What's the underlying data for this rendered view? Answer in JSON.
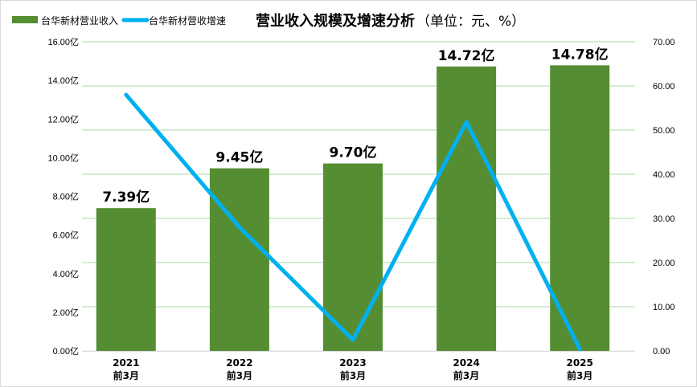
{
  "chart_data": {
    "type": "bar+line",
    "title": "营业收入规模及增速分析",
    "unit_note": "（单位：元、%）",
    "categories": [
      [
        "2021",
        "前3月"
      ],
      [
        "2022",
        "前3月"
      ],
      [
        "2023",
        "前3月"
      ],
      [
        "2024",
        "前3月"
      ],
      [
        "2025",
        "前3月"
      ]
    ],
    "series": [
      {
        "name": "台华新材营业收入",
        "type": "bar",
        "axis": "left",
        "color": "#558e32",
        "values": [
          7.39,
          9.45,
          9.7,
          14.72,
          14.78
        ],
        "labels": [
          "7.39亿",
          "9.45亿",
          "9.70亿",
          "14.72亿",
          "14.78亿"
        ]
      },
      {
        "name": "台华新材营收增速",
        "type": "line",
        "axis": "right",
        "color": "#00b0f0",
        "values": [
          58.0,
          28.0,
          2.5,
          51.8,
          0.4
        ]
      }
    ],
    "y_left": {
      "range": [
        0,
        16
      ],
      "ticks": [
        "0.00亿",
        "2.00亿",
        "4.00亿",
        "6.00亿",
        "8.00亿",
        "10.00亿",
        "12.00亿",
        "14.00亿",
        "16.00亿"
      ]
    },
    "y_right": {
      "range": [
        0,
        70
      ],
      "ticks": [
        "0.00",
        "10.00",
        "20.00",
        "30.00",
        "40.00",
        "50.00",
        "60.00",
        "70.00"
      ]
    },
    "grid": true,
    "gridColor": "#a9d8a0",
    "legend": "top-left"
  }
}
